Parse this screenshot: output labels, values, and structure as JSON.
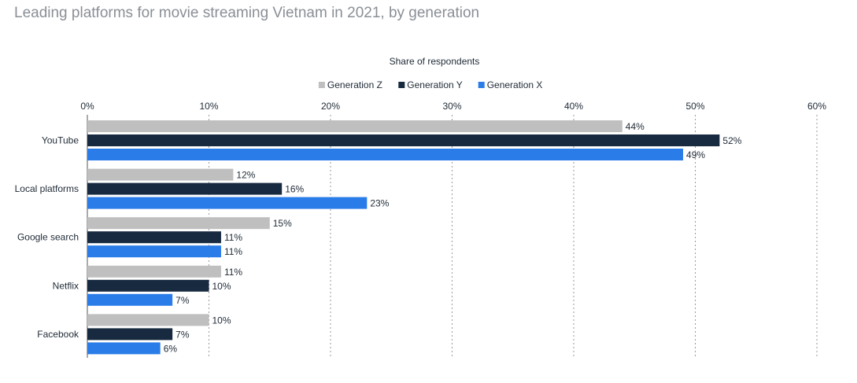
{
  "page": {
    "title": "Leading platforms for movie streaming Vietnam in 2021, by generation"
  },
  "chart_data": {
    "type": "bar",
    "orientation": "horizontal",
    "axis_title": "Share of respondents",
    "categories": [
      "YouTube",
      "Local platforms",
      "Google search",
      "Netflix",
      "Facebook"
    ],
    "series": [
      {
        "name": "Generation Z",
        "color": "#bfbfbf",
        "values": [
          44,
          12,
          15,
          11,
          10
        ],
        "labels": [
          "44%",
          "12%",
          "15%",
          "11%",
          "10%"
        ]
      },
      {
        "name": "Generation Y",
        "color": "#172a3f",
        "values": [
          52,
          16,
          11,
          10,
          7
        ],
        "labels": [
          "52%",
          "16%",
          "11%",
          "10%",
          "7%"
        ]
      },
      {
        "name": "Generation X",
        "color": "#2a7ce8",
        "values": [
          49,
          23,
          11,
          7,
          6
        ],
        "labels": [
          "49%",
          "23%",
          "11%",
          "7%",
          "6%"
        ]
      }
    ],
    "xlim": [
      0,
      60
    ],
    "ticks": [
      0,
      10,
      20,
      30,
      40,
      50,
      60
    ],
    "tick_labels": [
      "0%",
      "10%",
      "20%",
      "30%",
      "40%",
      "50%",
      "60%"
    ],
    "grid": true,
    "legend_position": "top-center"
  }
}
